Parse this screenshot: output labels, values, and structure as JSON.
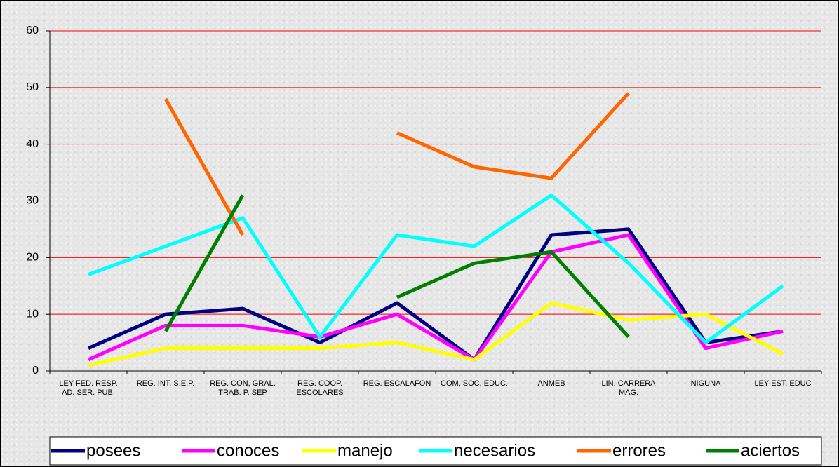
{
  "chart_data": {
    "type": "line",
    "categories": [
      "LEY FED. RESP. AD. SER. PUB.",
      "REG. INT. S.E.P.",
      "REG. CON, GRAL. TRAB. P. SEP",
      "REG. COOP. ESCOLARES",
      "REG. ESCALAFON",
      "COM, SOC, EDUC.",
      "ANMEB",
      "LIN. CARRERA MAG.",
      "NIGUNA",
      "LEY EST, EDUC"
    ],
    "series": [
      {
        "name": "posees",
        "color": "#000080",
        "values": [
          4,
          10,
          11,
          5,
          12,
          2,
          24,
          25,
          5,
          7
        ]
      },
      {
        "name": "conoces",
        "color": "#ff00ff",
        "values": [
          2,
          8,
          8,
          6,
          10,
          2,
          21,
          24,
          4,
          7
        ]
      },
      {
        "name": "manejo",
        "color": "#ffff00",
        "values": [
          1,
          4,
          4,
          4,
          5,
          2,
          12,
          9,
          10,
          3
        ]
      },
      {
        "name": "necesarios",
        "color": "#00ffff",
        "values": [
          17,
          22,
          27,
          6,
          24,
          22,
          31,
          19,
          5,
          15
        ]
      },
      {
        "name": "errores",
        "color": "#ff6600",
        "values": [
          null,
          48,
          24,
          null,
          42,
          36,
          34,
          49,
          null,
          null
        ]
      },
      {
        "name": "aciertos",
        "color": "#008000",
        "values": [
          null,
          7,
          31,
          null,
          13,
          19,
          21,
          6,
          null,
          null
        ]
      }
    ],
    "ylim": [
      0,
      60
    ],
    "yticks": [
      0,
      10,
      20,
      30,
      40,
      50,
      60
    ],
    "grid": true,
    "grid_color": "#ff0000",
    "legend": "bottom"
  }
}
